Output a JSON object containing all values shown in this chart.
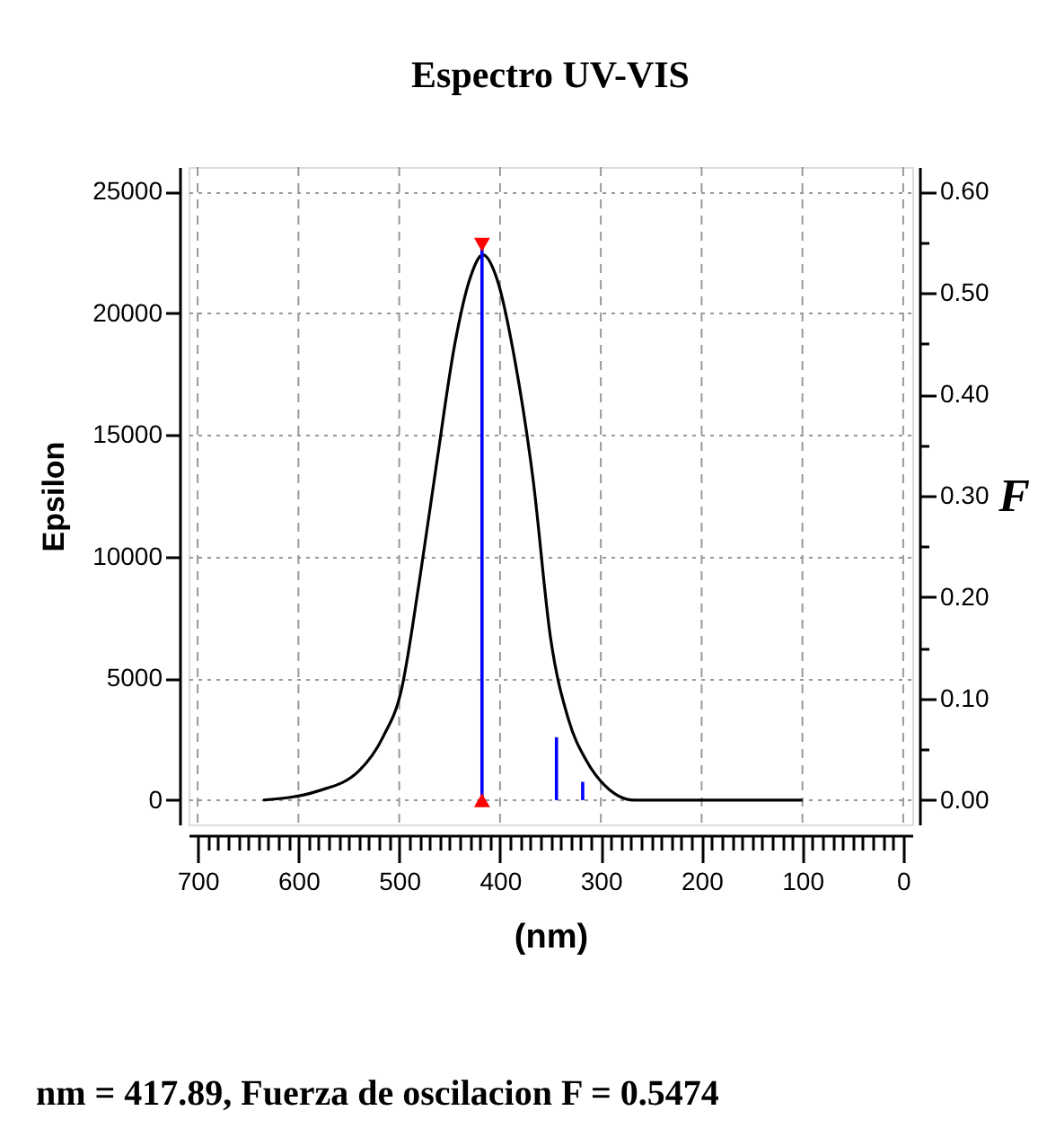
{
  "chart_data": {
    "type": "line",
    "title": "Espectro UV-VIS",
    "xlabel": "(nm)",
    "ylabel": "Epsilon",
    "y2label": "F",
    "xlim": [
      709,
      -9
    ],
    "ylim": [
      -1000,
      26000
    ],
    "y2lim": [
      -0.024,
      0.624
    ],
    "xticks": [
      700,
      {
        "value": 690,
        "label": null
      },
      {
        "value": 680,
        "label": null
      },
      {
        "value": 670,
        "label": null
      },
      {
        "value": 660,
        "label": null
      },
      {
        "value": 650,
        "label": null
      },
      {
        "value": 640,
        "label": null
      },
      {
        "value": 630,
        "label": null
      },
      {
        "value": 620,
        "label": null
      },
      {
        "value": 610,
        "label": null
      },
      600,
      {
        "value": 590,
        "label": null
      },
      {
        "value": 580,
        "label": null
      },
      {
        "value": 570,
        "label": null
      },
      {
        "value": 560,
        "label": null
      },
      {
        "value": 550,
        "label": null
      },
      {
        "value": 540,
        "label": null
      },
      {
        "value": 530,
        "label": null
      },
      {
        "value": 520,
        "label": null
      },
      {
        "value": 510,
        "label": null
      },
      500,
      {
        "value": 490,
        "label": null
      },
      {
        "value": 480,
        "label": null
      },
      {
        "value": 470,
        "label": null
      },
      {
        "value": 460,
        "label": null
      },
      {
        "value": 450,
        "label": null
      },
      {
        "value": 440,
        "label": null
      },
      {
        "value": 430,
        "label": null
      },
      {
        "value": 420,
        "label": null
      },
      {
        "value": 410,
        "label": null
      },
      400,
      {
        "value": 390,
        "label": null
      },
      {
        "value": 380,
        "label": null
      },
      {
        "value": 370,
        "label": null
      },
      {
        "value": 360,
        "label": null
      },
      {
        "value": 350,
        "label": null
      },
      {
        "value": 340,
        "label": null
      },
      {
        "value": 330,
        "label": null
      },
      {
        "value": 320,
        "label": null
      },
      {
        "value": 310,
        "label": null
      },
      300,
      {
        "value": 290,
        "label": null
      },
      {
        "value": 280,
        "label": null
      },
      {
        "value": 270,
        "label": null
      },
      {
        "value": 260,
        "label": null
      },
      {
        "value": 250,
        "label": null
      },
      {
        "value": 240,
        "label": null
      },
      {
        "value": 230,
        "label": null
      },
      {
        "value": 220,
        "label": null
      },
      {
        "value": 210,
        "label": null
      },
      200,
      {
        "value": 190,
        "label": null
      },
      {
        "value": 180,
        "label": null
      },
      {
        "value": 170,
        "label": null
      },
      {
        "value": 160,
        "label": null
      },
      {
        "value": 150,
        "label": null
      },
      {
        "value": 140,
        "label": null
      },
      {
        "value": 130,
        "label": null
      },
      {
        "value": 120,
        "label": null
      },
      {
        "value": 110,
        "label": null
      },
      100,
      {
        "value": 90,
        "label": null
      },
      {
        "value": 80,
        "label": null
      },
      {
        "value": 70,
        "label": null
      },
      {
        "value": 60,
        "label": null
      },
      {
        "value": 50,
        "label": null
      },
      {
        "value": 40,
        "label": null
      },
      {
        "value": 30,
        "label": null
      },
      {
        "value": 20,
        "label": null
      },
      {
        "value": 10,
        "label": null
      },
      0
    ],
    "yticks": [
      0,
      5000,
      10000,
      15000,
      20000,
      25000
    ],
    "y2ticks": [
      {
        "value": 0,
        "label": "0.00"
      },
      {
        "value": 0.05,
        "label": null
      },
      {
        "value": 0.1,
        "label": "0.10"
      },
      {
        "value": 0.15,
        "label": null
      },
      {
        "value": 0.2,
        "label": "0.20"
      },
      {
        "value": 0.25,
        "label": null
      },
      {
        "value": 0.3,
        "label": "0.30"
      },
      {
        "value": 0.35,
        "label": null
      },
      {
        "value": 0.4,
        "label": "0.40"
      },
      {
        "value": 0.45,
        "label": null
      },
      {
        "value": 0.5,
        "label": "0.50"
      },
      {
        "value": 0.55,
        "label": null
      },
      {
        "value": 0.6,
        "label": "0.60"
      }
    ],
    "grid": true,
    "series": [
      {
        "color": "#000000",
        "x": [
          635,
          581,
          540,
          516,
          498,
          480,
          463,
          445,
          430,
          417,
          403,
          385,
          367,
          350,
          332,
          314,
          296,
          267,
          100
        ],
        "values": [
          0,
          370,
          1200,
          2600,
          4500,
          9000,
          13800,
          18700,
          21400,
          22400,
          21400,
          18000,
          13100,
          6700,
          3300,
          1600,
          600,
          0,
          0
        ]
      },
      {
        "type": "bar",
        "axis": "y2",
        "color": "#0000ff",
        "x": [
          417.89,
          344,
          318
        ],
        "values": [
          0.5474,
          0.062,
          0.018
        ]
      },
      {
        "type": "scatter",
        "axis": "y2",
        "color": "#ff0000",
        "marker": "triangle",
        "x": [
          417.89,
          417.89
        ],
        "values": [
          0.5474,
          0
        ]
      }
    ],
    "annotations": [
      "nm = 417.89, Fuerza de oscilacion F = 0.5474"
    ]
  }
}
